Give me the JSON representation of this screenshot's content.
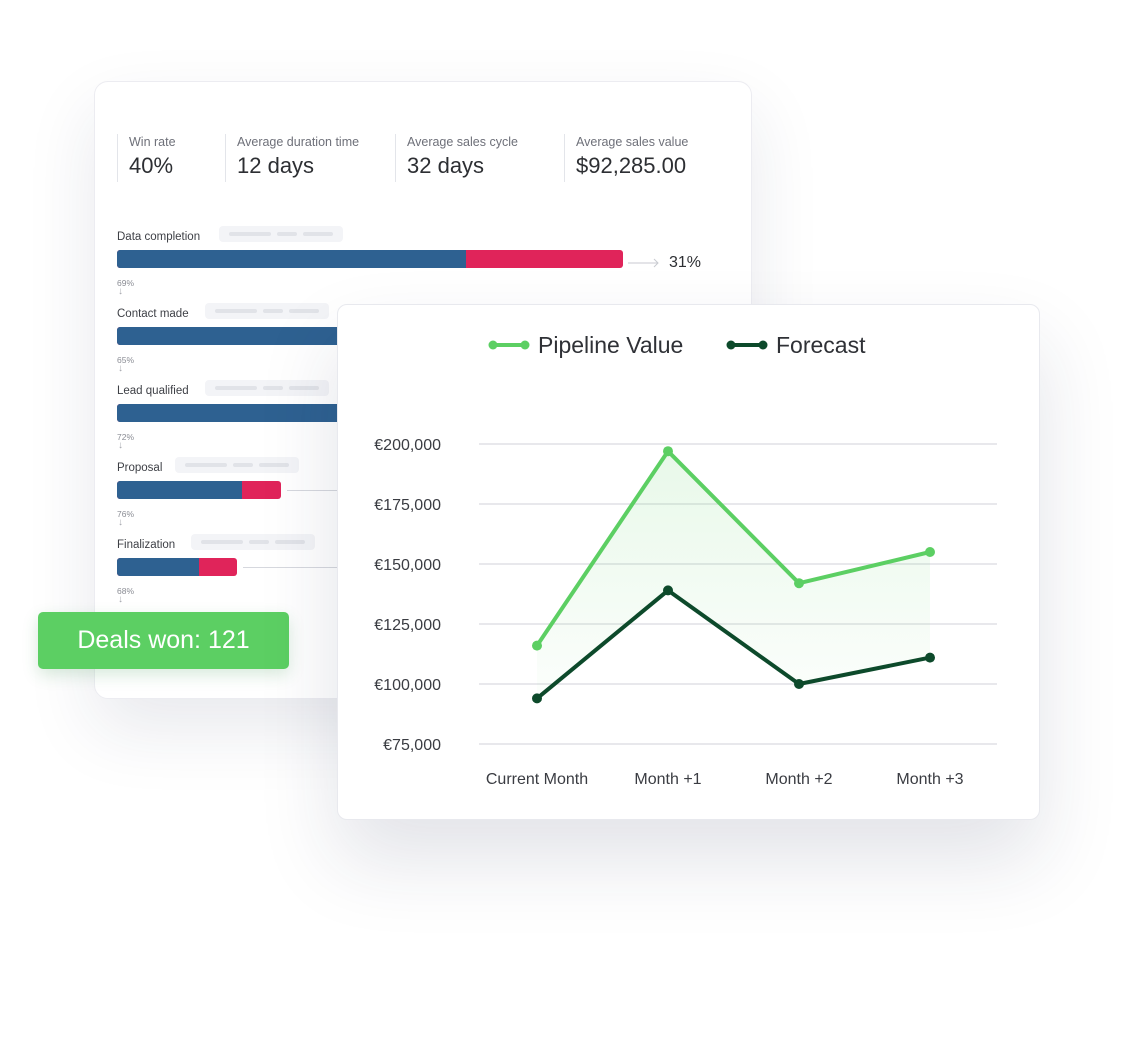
{
  "kpis": [
    {
      "label": "Win rate",
      "value": "40%"
    },
    {
      "label": "Average duration time",
      "value": "12 days"
    },
    {
      "label": "Average sales cycle",
      "value": "32 days"
    },
    {
      "label": "Average sales value",
      "value": "$92,285.00"
    }
  ],
  "funnel": {
    "stages": [
      {
        "name": "Data completion",
        "progress": 0.69,
        "conversion": "69%"
      },
      {
        "name": "Contact made",
        "progress": 0.65,
        "conversion": "65%"
      },
      {
        "name": "Lead qualified",
        "progress": 0.72,
        "conversion": "72%"
      },
      {
        "name": "Proposal",
        "progress": 0.76,
        "conversion": "76%"
      },
      {
        "name": "Finalization",
        "progress": 0.68,
        "conversion": "68%"
      }
    ],
    "end_value": "31%"
  },
  "deals_won": "Deals won: 121",
  "colors": {
    "pipeline": "#5ccf63",
    "forecast": "#0d4a2b",
    "funnel_fill": "#2e6191",
    "funnel_loss": "#e0245a",
    "badge": "#5ccf63"
  },
  "chart_data": {
    "type": "line",
    "categories": [
      "Current Month",
      "Month +1",
      "Month +2",
      "Month +3"
    ],
    "series": [
      {
        "name": "Pipeline Value",
        "values": [
          116000,
          197000,
          142000,
          155000
        ]
      },
      {
        "name": "Forecast",
        "values": [
          94000,
          139000,
          100000,
          111000
        ]
      }
    ],
    "yticks": [
      "€200,000",
      "€175,000",
      "€150,000",
      "€125,000",
      "€100,000",
      "€75,000"
    ],
    "ylim": [
      75000,
      200000
    ],
    "grid": true,
    "legend": "top-center"
  }
}
